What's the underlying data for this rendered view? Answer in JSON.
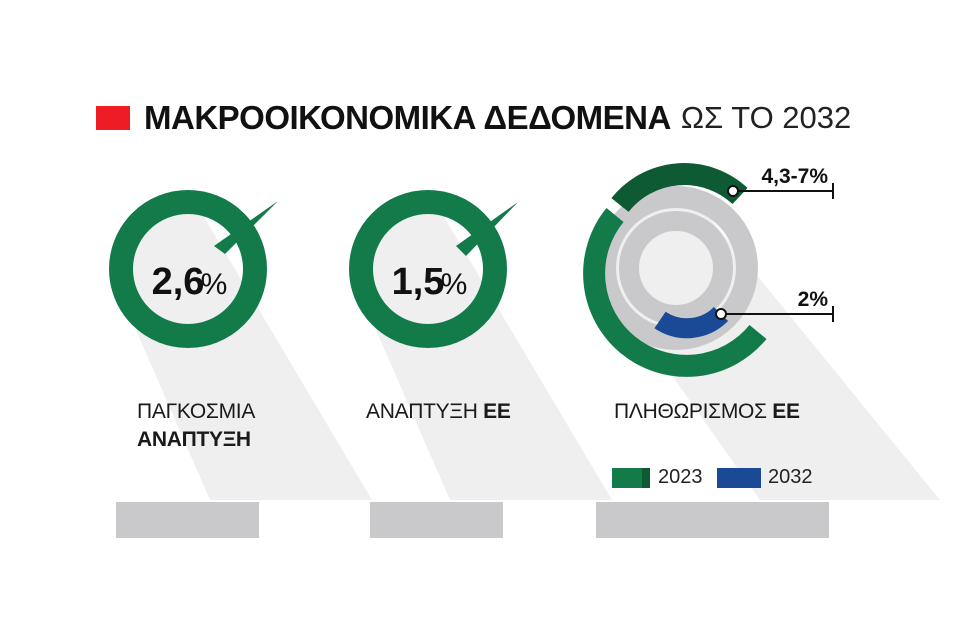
{
  "header": {
    "title_bold": "ΜΑΚΡΟΟΙΚΟΝΟΜΙΚΑ ΔΕΔΟΜΕΝΑ",
    "title_light": "ΩΣ ΤΟ 2032"
  },
  "colors": {
    "accent_red": "#ee1c25",
    "green": "#137a4a",
    "dark_green": "#0d5a34",
    "blue": "#1a4a96",
    "gray": "#c9c9cb"
  },
  "chart_data": [
    {
      "type": "donut",
      "title": "",
      "value_label": "2,6",
      "unit": "%",
      "caption_line1": "ΠΑΓΚΟΣΜΙΑ",
      "caption_line2": "ΑΝΑΠΤΥΞΗ"
    },
    {
      "type": "donut",
      "title": "",
      "value_label": "1,5",
      "unit": "%",
      "caption_plain": "ΑΝΑΠΤΥΞΗ",
      "caption_bold": "ΕΕ"
    },
    {
      "type": "donut",
      "caption_plain": "ΠΛΗΘΩΡΙΣΜΟΣ",
      "caption_bold": "ΕΕ",
      "series": [
        {
          "name": "2023",
          "range_label": "4,3-7%",
          "value_min": 4.3,
          "value_max": 7
        },
        {
          "name": "2032",
          "value_label": "2%",
          "value": 2
        }
      ],
      "legend": [
        "2023",
        "2032"
      ]
    }
  ]
}
